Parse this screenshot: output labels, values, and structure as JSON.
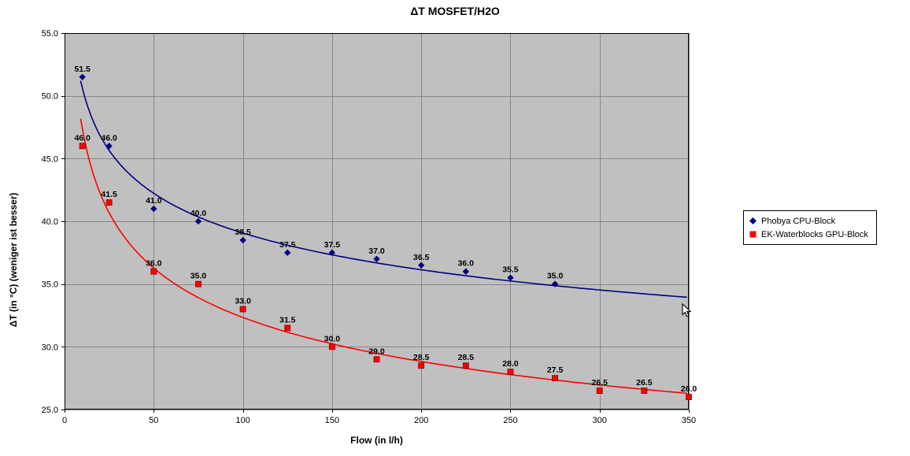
{
  "chart_data": {
    "type": "scatter",
    "title": "ΔT MOSFET/H2O",
    "xlabel": "Flow (in l/h)",
    "ylabel": "ΔT (in °C) (weniger ist besser)",
    "xlim": [
      0,
      350
    ],
    "ylim": [
      25,
      55
    ],
    "x_ticks": [
      0,
      50,
      100,
      150,
      200,
      250,
      300,
      350
    ],
    "x_tick_labels": [
      "0",
      "50",
      "100",
      "150",
      "200",
      "250",
      "300",
      "350"
    ],
    "y_ticks": [
      25,
      30,
      35,
      40,
      45,
      50,
      55
    ],
    "y_tick_labels": [
      "25.0",
      "30.0",
      "35.0",
      "40.0",
      "45.0",
      "50.0",
      "55.0"
    ],
    "grid": true,
    "plot_background": "#c0c0c0",
    "grid_color": "#878787",
    "axis_color": "#000000",
    "legend_position": "right",
    "series": [
      {
        "name": "Phobya CPU-Block",
        "color": "#000080",
        "marker": "diamond",
        "trendline": "power",
        "x": [
          10,
          25,
          50,
          75,
          100,
          125,
          150,
          175,
          200,
          225,
          250,
          275
        ],
        "y": [
          51.5,
          46.0,
          41.0,
          40.0,
          38.5,
          37.5,
          37.5,
          37.0,
          36.5,
          36.0,
          35.5,
          35.0
        ],
        "labels": [
          "51.5",
          "46.0",
          "41.0",
          "40.0",
          "38.5",
          "37.5",
          "37.5",
          "37.0",
          "36.5",
          "36.0",
          "35.5",
          "35.0"
        ]
      },
      {
        "name": "EK-Waterblocks GPU-Block",
        "color": "#ff0000",
        "marker": "square",
        "trendline": "power",
        "x": [
          10,
          25,
          50,
          75,
          100,
          125,
          150,
          175,
          200,
          225,
          250,
          275,
          300,
          325,
          350
        ],
        "y": [
          46.0,
          41.5,
          36.0,
          35.0,
          33.0,
          31.5,
          30.0,
          29.0,
          28.5,
          28.5,
          28.0,
          27.5,
          26.5,
          26.5,
          26.0
        ],
        "labels": [
          "46.0",
          "41.5",
          "36.0",
          "35.0",
          "33.0",
          "31.5",
          "30.0",
          "29.0",
          "28.5",
          "28.5",
          "28.0",
          "27.5",
          "26.5",
          "26.5",
          "26.0"
        ]
      }
    ]
  },
  "icons": {
    "legend_marker_phobya": "diamond",
    "legend_marker_ek": "square",
    "cursor": "arrow-pointer"
  }
}
